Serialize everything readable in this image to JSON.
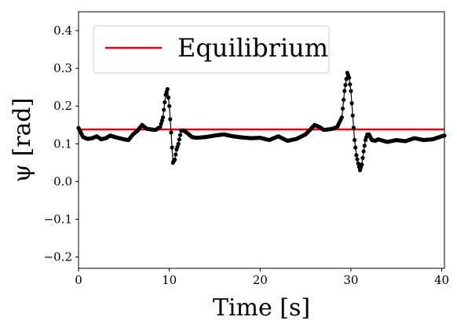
{
  "chart_data": {
    "type": "scatter",
    "xlabel": "Time [s]",
    "ylabel": "ψ [rad]",
    "xlim": [
      0,
      40.3
    ],
    "ylim": [
      -0.23,
      0.45
    ],
    "x_ticks": [
      {
        "value": 0,
        "label": "0"
      },
      {
        "value": 10,
        "label": "10"
      },
      {
        "value": 20,
        "label": "20"
      },
      {
        "value": 30,
        "label": "30"
      },
      {
        "value": 40,
        "label": "40"
      }
    ],
    "y_ticks": [
      {
        "value": 0.4,
        "label": "0.4"
      },
      {
        "value": 0.3,
        "label": "0.3"
      },
      {
        "value": 0.2,
        "label": "0.2"
      },
      {
        "value": 0.1,
        "label": "0.1"
      },
      {
        "value": 0.0,
        "label": "0.0"
      },
      {
        "value": -0.1,
        "label": "−0.1"
      },
      {
        "value": -0.2,
        "label": "−0.2"
      }
    ],
    "grid": false,
    "legend_position": "top-left",
    "reference_line": {
      "name": "Equilibrium",
      "value": 0.138,
      "color": "#e8000b"
    },
    "series": [
      {
        "marker_color": "#000000",
        "x": [
          0,
          0.5,
          1,
          1.5,
          2,
          2.5,
          3,
          3.5,
          4,
          4.5,
          5,
          5.5,
          6,
          6.5,
          7,
          7.5,
          8,
          8.5,
          9,
          9.3,
          9.6,
          9.8,
          10,
          10.2,
          10.4,
          10.6,
          10.8,
          11,
          11.3,
          11.6,
          12,
          12.5,
          13,
          14,
          15,
          16,
          17,
          18,
          19,
          20,
          21,
          22,
          23,
          24,
          25,
          25.5,
          26,
          26.5,
          27,
          27.5,
          28,
          28.5,
          29,
          29.3,
          29.6,
          29.8,
          30,
          30.2,
          30.4,
          30.6,
          30.8,
          31,
          31.2,
          31.4,
          31.6,
          31.8,
          32,
          32.3,
          32.7,
          33,
          34,
          35,
          36,
          37,
          38,
          39,
          40,
          40.3
        ],
        "y": [
          0.142,
          0.118,
          0.113,
          0.115,
          0.12,
          0.112,
          0.115,
          0.122,
          0.118,
          0.115,
          0.112,
          0.11,
          0.125,
          0.135,
          0.15,
          0.14,
          0.138,
          0.137,
          0.145,
          0.17,
          0.23,
          0.245,
          0.2,
          0.13,
          0.05,
          0.058,
          0.085,
          0.1,
          0.135,
          0.135,
          0.128,
          0.118,
          0.116,
          0.118,
          0.122,
          0.125,
          0.12,
          0.117,
          0.115,
          0.116,
          0.11,
          0.12,
          0.108,
          0.113,
          0.125,
          0.137,
          0.15,
          0.145,
          0.137,
          0.138,
          0.14,
          0.145,
          0.17,
          0.24,
          0.288,
          0.275,
          0.24,
          0.175,
          0.11,
          0.07,
          0.048,
          0.03,
          0.045,
          0.08,
          0.11,
          0.125,
          0.125,
          0.11,
          0.108,
          0.112,
          0.105,
          0.11,
          0.107,
          0.115,
          0.11,
          0.112,
          0.12,
          0.122
        ]
      }
    ]
  }
}
